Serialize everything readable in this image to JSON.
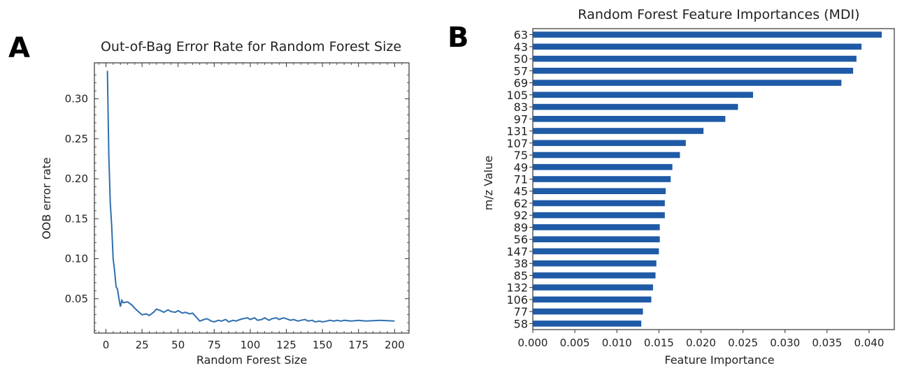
{
  "panels": {
    "a_letter": "A",
    "b_letter": "B"
  },
  "chart_data": [
    {
      "type": "line",
      "title": "Out-of-Bag Error Rate for Random Forest Size",
      "xlabel": "Random Forest Size",
      "ylabel": "OOB error rate",
      "xlim": [
        -8,
        210
      ],
      "ylim": [
        0.007,
        0.345
      ],
      "xticks": [
        0,
        25,
        50,
        75,
        100,
        125,
        150,
        175,
        200
      ],
      "yticks": [
        0.05,
        0.1,
        0.15,
        0.2,
        0.25,
        0.3
      ],
      "ytick_labels": [
        "0.05",
        "0.10",
        "0.15",
        "0.20",
        "0.25",
        "0.30"
      ],
      "grid": false,
      "color": "#2f6fb0",
      "x": [
        1,
        2,
        3,
        4,
        5,
        6,
        7,
        8,
        9,
        10,
        11,
        12,
        15,
        18,
        20,
        23,
        25,
        28,
        30,
        33,
        35,
        38,
        40,
        43,
        45,
        48,
        50,
        53,
        55,
        58,
        60,
        63,
        65,
        68,
        70,
        73,
        75,
        78,
        80,
        83,
        85,
        88,
        90,
        93,
        95,
        98,
        100,
        103,
        105,
        108,
        110,
        113,
        115,
        118,
        120,
        123,
        125,
        128,
        130,
        133,
        135,
        138,
        140,
        143,
        145,
        148,
        150,
        153,
        155,
        158,
        160,
        163,
        165,
        170,
        175,
        180,
        190,
        200
      ],
      "y": [
        0.335,
        0.23,
        0.17,
        0.14,
        0.1,
        0.085,
        0.065,
        0.062,
        0.05,
        0.04,
        0.048,
        0.045,
        0.046,
        0.042,
        0.038,
        0.033,
        0.03,
        0.031,
        0.029,
        0.033,
        0.037,
        0.035,
        0.033,
        0.036,
        0.034,
        0.033,
        0.035,
        0.032,
        0.033,
        0.031,
        0.032,
        0.026,
        0.022,
        0.024,
        0.025,
        0.022,
        0.021,
        0.023,
        0.022,
        0.024,
        0.021,
        0.023,
        0.022,
        0.024,
        0.025,
        0.026,
        0.024,
        0.026,
        0.023,
        0.024,
        0.026,
        0.023,
        0.025,
        0.026,
        0.024,
        0.026,
        0.025,
        0.023,
        0.024,
        0.022,
        0.023,
        0.024,
        0.022,
        0.023,
        0.021,
        0.022,
        0.021,
        0.022,
        0.023,
        0.022,
        0.023,
        0.022,
        0.023,
        0.022,
        0.023,
        0.022,
        0.023,
        0.022
      ]
    },
    {
      "type": "bar",
      "orientation": "horizontal",
      "title": "Random Forest Feature Importances (MDI)",
      "xlabel": "Feature Importance",
      "ylabel": "m/z Value",
      "xlim": [
        0.0,
        0.043
      ],
      "xticks": [
        0.0,
        0.005,
        0.01,
        0.015,
        0.02,
        0.025,
        0.03,
        0.035,
        0.04
      ],
      "xtick_labels": [
        "0.000",
        "0.005",
        "0.010",
        "0.015",
        "0.020",
        "0.025",
        "0.030",
        "0.035",
        "0.040"
      ],
      "grid": false,
      "color": "#1f5aa6",
      "categories": [
        "63",
        "43",
        "50",
        "57",
        "69",
        "105",
        "83",
        "97",
        "131",
        "107",
        "75",
        "49",
        "71",
        "45",
        "62",
        "92",
        "89",
        "56",
        "147",
        "38",
        "85",
        "132",
        "106",
        "77",
        "58"
      ],
      "values": [
        0.0415,
        0.0391,
        0.0385,
        0.0381,
        0.0367,
        0.0262,
        0.0244,
        0.0229,
        0.0203,
        0.0182,
        0.0175,
        0.0166,
        0.0164,
        0.0158,
        0.0157,
        0.0157,
        0.0151,
        0.0151,
        0.015,
        0.0147,
        0.0146,
        0.0143,
        0.0141,
        0.0131,
        0.0129
      ]
    }
  ]
}
